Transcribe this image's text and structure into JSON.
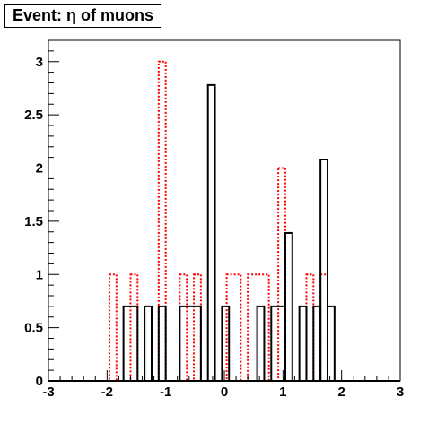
{
  "chart_data": {
    "type": "histogram",
    "title": "Event: η of muons",
    "xlabel": "",
    "ylabel": "",
    "xlim": [
      -3,
      3
    ],
    "ylim": [
      0,
      3.2
    ],
    "x_ticks": [
      "-3",
      "-2",
      "-1",
      "0",
      "1",
      "2",
      "3"
    ],
    "y_ticks": [
      "0",
      "0.5",
      "1",
      "1.5",
      "2",
      "2.5",
      "3"
    ],
    "bin_width": 0.12,
    "grid": false,
    "legend": "none",
    "series": [
      {
        "style": "solid",
        "color": "#000000",
        "bins": [
          {
            "x0": -1.72,
            "x1": -1.48,
            "y": 0.7
          },
          {
            "x0": -1.36,
            "x1": -1.24,
            "y": 0.7
          },
          {
            "x0": -1.12,
            "x1": -1.0,
            "y": 0.7
          },
          {
            "x0": -0.76,
            "x1": -0.4,
            "y": 0.7
          },
          {
            "x0": -0.28,
            "x1": -0.16,
            "y": 2.78
          },
          {
            "x0": -0.04,
            "x1": 0.08,
            "y": 0.7
          },
          {
            "x0": 0.56,
            "x1": 0.68,
            "y": 0.7
          },
          {
            "x0": 0.8,
            "x1": 1.04,
            "y": 0.7
          },
          {
            "x0": 1.04,
            "x1": 1.16,
            "y": 1.39
          },
          {
            "x0": 1.28,
            "x1": 1.4,
            "y": 0.7
          },
          {
            "x0": 1.52,
            "x1": 1.64,
            "y": 0.7
          },
          {
            "x0": 1.64,
            "x1": 1.76,
            "y": 2.08
          },
          {
            "x0": 1.76,
            "x1": 1.88,
            "y": 0.7
          }
        ]
      },
      {
        "style": "dotted",
        "color": "#ff0000",
        "bins": [
          {
            "x0": -1.96,
            "x1": -1.84,
            "y": 1
          },
          {
            "x0": -1.6,
            "x1": -1.48,
            "y": 1
          },
          {
            "x0": -1.12,
            "x1": -1.0,
            "y": 3
          },
          {
            "x0": -0.76,
            "x1": -0.64,
            "y": 1
          },
          {
            "x0": -0.52,
            "x1": -0.4,
            "y": 1
          },
          {
            "x0": 0.04,
            "x1": 0.28,
            "y": 1
          },
          {
            "x0": 0.4,
            "x1": 0.76,
            "y": 1
          },
          {
            "x0": 0.92,
            "x1": 1.04,
            "y": 2
          },
          {
            "x0": 1.4,
            "x1": 1.52,
            "y": 1
          },
          {
            "x0": 1.64,
            "x1": 1.76,
            "y": 1
          }
        ]
      }
    ]
  }
}
